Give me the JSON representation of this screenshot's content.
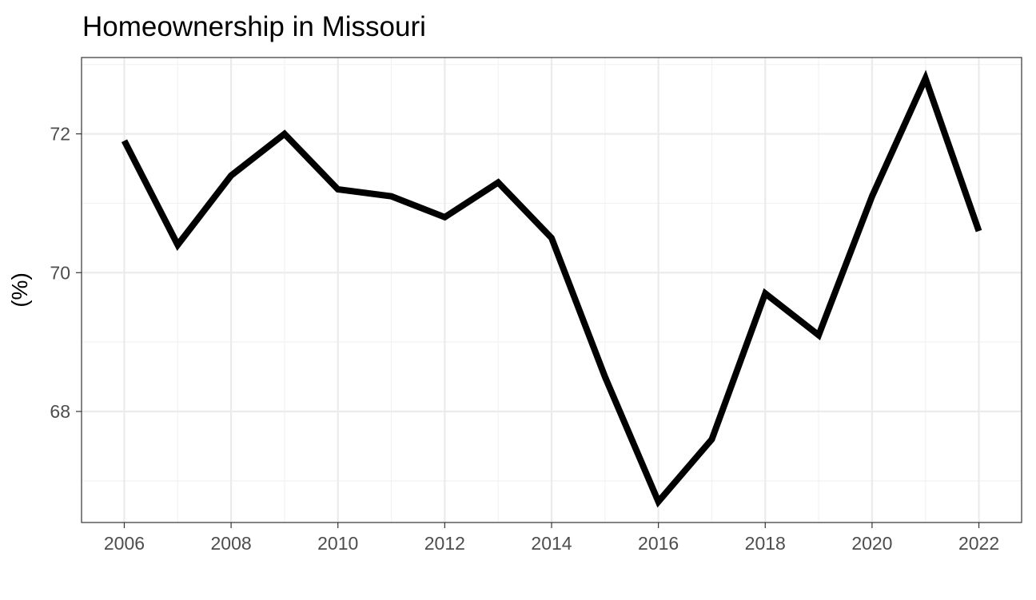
{
  "chart_data": {
    "type": "line",
    "title": "Homeownership in Missouri",
    "xlabel": "",
    "ylabel": "(%)",
    "x": [
      2006,
      2007,
      2008,
      2009,
      2010,
      2011,
      2012,
      2013,
      2014,
      2015,
      2016,
      2017,
      2018,
      2019,
      2020,
      2021,
      2022
    ],
    "series": [
      {
        "values": [
          71.9,
          70.4,
          71.4,
          72.0,
          71.2,
          71.1,
          70.8,
          71.3,
          70.5,
          68.5,
          66.7,
          67.6,
          69.7,
          69.1,
          71.1,
          72.8,
          70.6
        ],
        "color": "#000000"
      }
    ],
    "xlim": [
      2005.2,
      2022.8
    ],
    "ylim": [
      66.4,
      73.1
    ],
    "x_ticks": [
      "2006",
      "2008",
      "2010",
      "2012",
      "2014",
      "2016",
      "2018",
      "2020",
      "2022"
    ],
    "y_ticks": [
      "68",
      "70",
      "72"
    ],
    "grid": true,
    "legend": "none",
    "colors": {
      "background": "#ffffff",
      "panel_border": "#333333",
      "grid_major": "#ebebeb",
      "grid_minor": "#f2f2f2",
      "line": "#000000",
      "tick_text": "#4d4d4d"
    }
  }
}
